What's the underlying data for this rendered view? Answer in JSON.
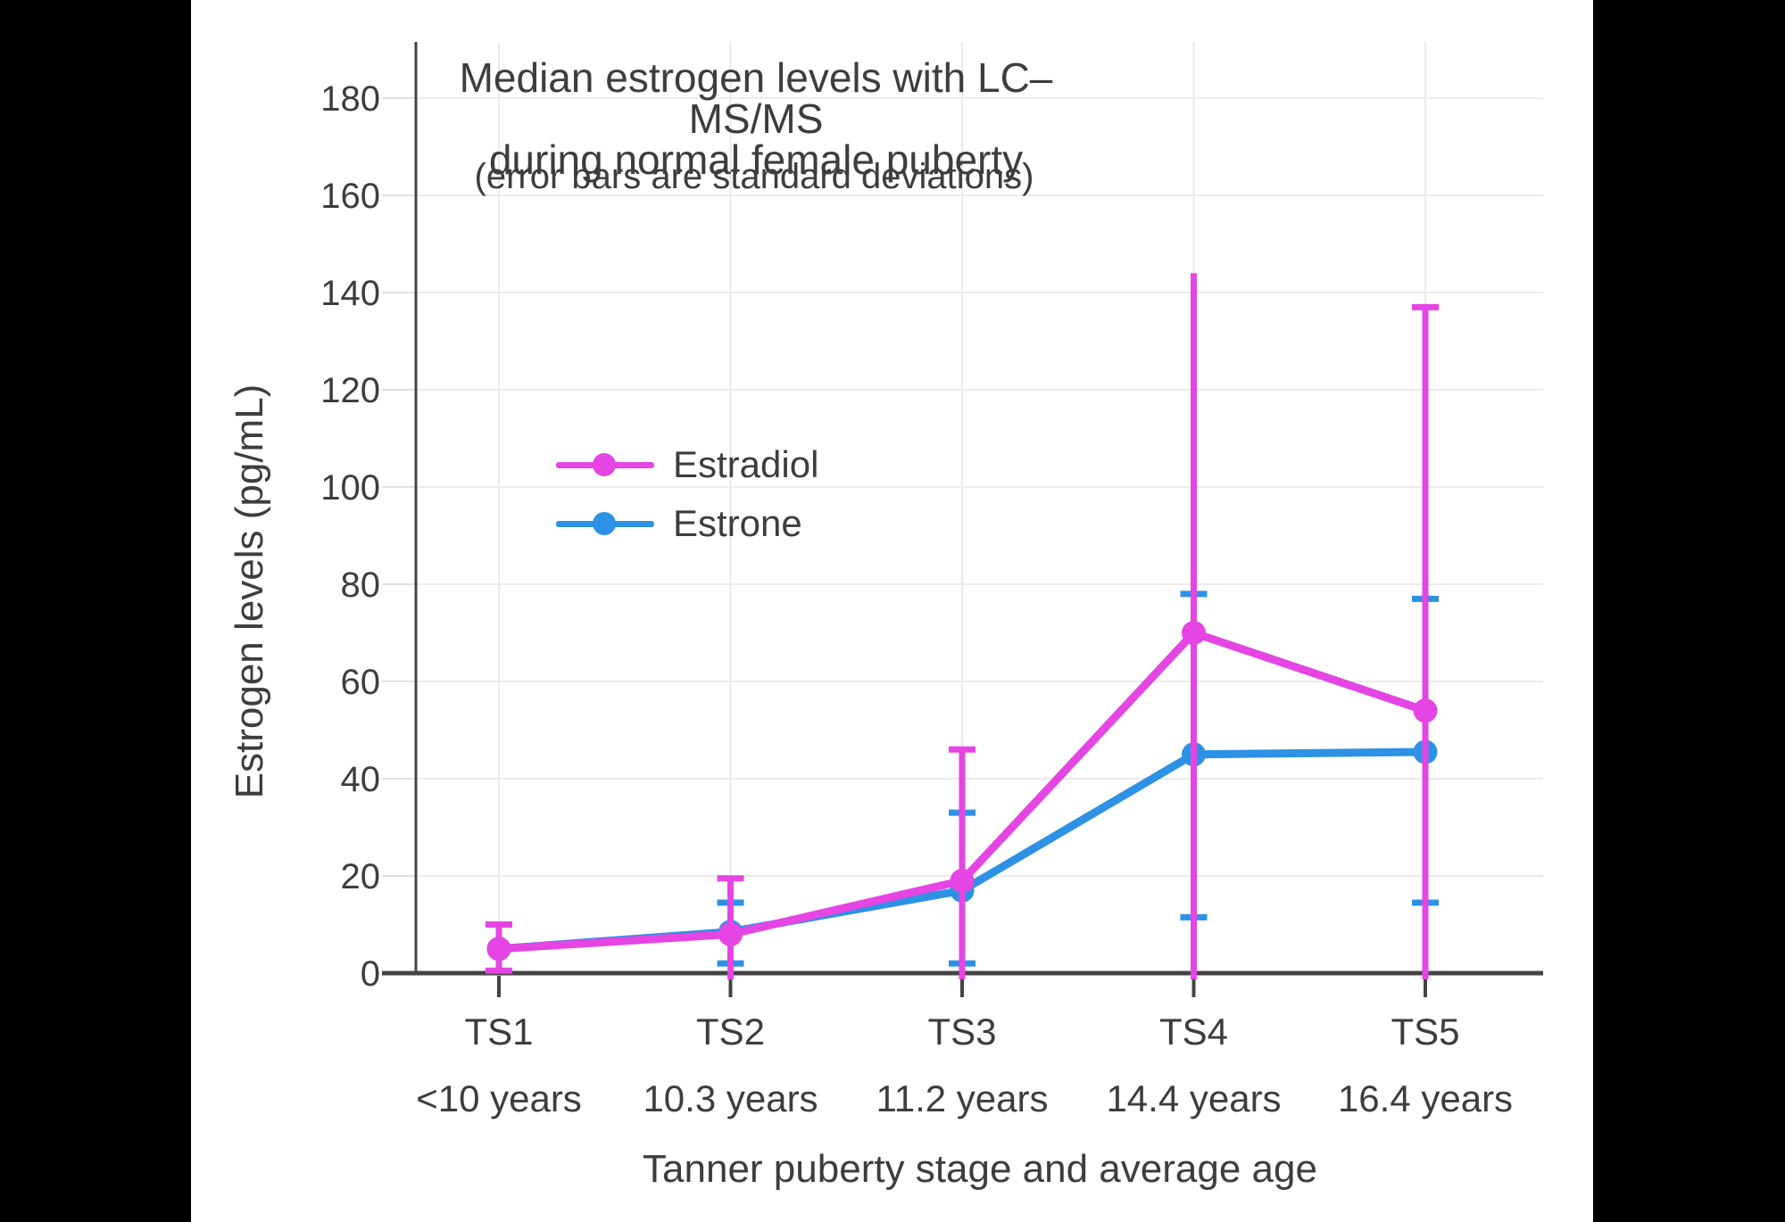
{
  "canvas": {
    "background": "#000000",
    "panel_background": "#ffffff"
  },
  "chart_data": {
    "type": "line",
    "title": "Median estrogen levels with LC–MS/MS",
    "title_line2": "during normal female puberty",
    "subtitle": "(error bars are standard deviations)",
    "xlabel": "Tanner puberty stage and average age",
    "ylabel": "Estrogen levels (pg/mL)",
    "ylim": [
      0,
      191.5
    ],
    "yticks": [
      0,
      20,
      40,
      60,
      80,
      100,
      120,
      140,
      160,
      180
    ],
    "categories": [
      "TS1",
      "TS2",
      "TS3",
      "TS4",
      "TS5"
    ],
    "category_sublabels": [
      "<10 years",
      "10.3 years",
      "11.2 years",
      "14.4 years",
      "16.4 years"
    ],
    "grid": true,
    "legend_position": "inside-left",
    "text_color": "#3d3d3d",
    "axis_color": "#444444",
    "grid_color": "#ebebeb",
    "series": [
      {
        "name": "Estradiol",
        "color": "#E545E2",
        "values": [
          5,
          8,
          19,
          70,
          54
        ],
        "err_low": [
          0.5,
          0,
          0,
          0,
          0
        ],
        "err_high": [
          10,
          19.5,
          46,
          144,
          137
        ],
        "cap_low": [
          true,
          false,
          false,
          false,
          false
        ],
        "cap_high": [
          true,
          true,
          true,
          false,
          true
        ],
        "clipped_low": [
          false,
          true,
          true,
          true,
          true
        ]
      },
      {
        "name": "Estrone",
        "color": "#2D91E5",
        "values": [
          5,
          8.5,
          17,
          45,
          45.5
        ],
        "err_low": [
          null,
          2,
          2,
          11.5,
          14.5
        ],
        "err_high": [
          null,
          14.5,
          33,
          78,
          77
        ],
        "cap_low": [
          false,
          true,
          true,
          true,
          true
        ],
        "cap_high": [
          false,
          true,
          true,
          true,
          true
        ],
        "clipped_low": [
          false,
          false,
          false,
          false,
          false
        ]
      }
    ]
  }
}
